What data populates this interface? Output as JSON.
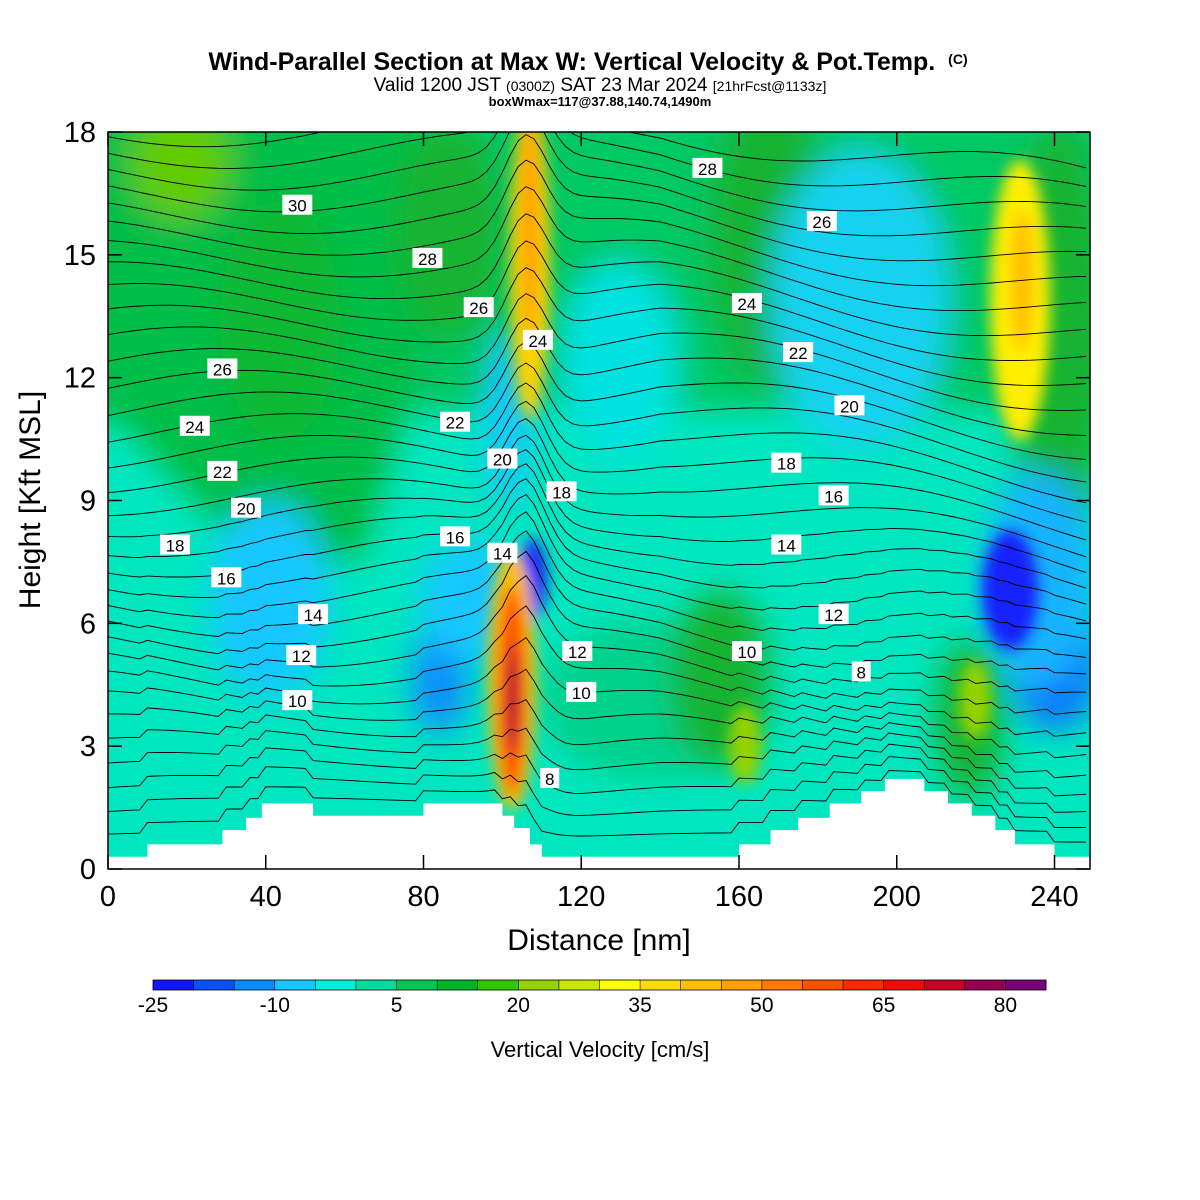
{
  "chart_data": {
    "type": "heatmap",
    "title": "Wind-Parallel Section at Max W: Vertical Velocity & Pot.Temp.",
    "title_mark": "(C)",
    "subtitle_parts": [
      "Valid 1200 JST",
      "(0300Z)",
      "SAT 23 Mar 2024",
      "[21hrFcst@1133z]"
    ],
    "info": "boxWmax=117@37.88,140.74,1490m",
    "xlabel": "Distance [nm]",
    "ylabel": "Height [Kft MSL]",
    "xlim": [
      0,
      249
    ],
    "ylim": [
      0,
      18
    ],
    "x_ticks": [
      0,
      40,
      80,
      120,
      160,
      200,
      240
    ],
    "y_ticks": [
      0,
      3,
      6,
      9,
      12,
      15,
      18
    ],
    "colorbar": {
      "label": "Vertical Velocity [cm/s]",
      "tick_labels": [
        "-25",
        "-10",
        "5",
        "20",
        "35",
        "50",
        "65",
        "80"
      ],
      "colors": [
        "#1414ff",
        "#0a50ff",
        "#0a8cff",
        "#14c8ff",
        "#00eedc",
        "#00dca0",
        "#00c850",
        "#00b428",
        "#32c800",
        "#96d200",
        "#c8e600",
        "#ffff00",
        "#ffdc00",
        "#ffbe00",
        "#ffa000",
        "#ff7800",
        "#ff5000",
        "#ff2800",
        "#f00a0a",
        "#c80028",
        "#960050",
        "#780078"
      ]
    },
    "velocity_cells": [
      {
        "x": 110,
        "z": 4.0,
        "w": 75
      },
      {
        "x": 114,
        "z": 14.0,
        "w": 35
      },
      {
        "x": 230,
        "z": 16.0,
        "w": 33
      },
      {
        "x": 232,
        "z": 13.0,
        "w": 20
      },
      {
        "x": 115,
        "z": 7.0,
        "w": -20
      },
      {
        "x": 229,
        "z": 6.5,
        "w": -22
      },
      {
        "x": 163,
        "z": 3.0,
        "w": 25
      },
      {
        "x": 220,
        "z": 3.8,
        "w": 20
      }
    ],
    "isentrope_labels": [
      {
        "text": "30",
        "x": 48,
        "z": 16.2
      },
      {
        "text": "28",
        "x": 81,
        "z": 14.9
      },
      {
        "text": "26",
        "x": 94,
        "z": 13.7
      },
      {
        "text": "24",
        "x": 109,
        "z": 12.9
      },
      {
        "text": "26",
        "x": 29,
        "z": 12.2
      },
      {
        "text": "24",
        "x": 22,
        "z": 10.8
      },
      {
        "text": "22",
        "x": 29,
        "z": 9.7
      },
      {
        "text": "20",
        "x": 35,
        "z": 8.8
      },
      {
        "text": "18",
        "x": 17,
        "z": 7.9
      },
      {
        "text": "16",
        "x": 30,
        "z": 7.1
      },
      {
        "text": "22",
        "x": 88,
        "z": 10.9
      },
      {
        "text": "20",
        "x": 100,
        "z": 10.0
      },
      {
        "text": "18",
        "x": 115,
        "z": 9.2
      },
      {
        "text": "16",
        "x": 88,
        "z": 8.1
      },
      {
        "text": "14",
        "x": 100,
        "z": 7.7
      },
      {
        "text": "14",
        "x": 52,
        "z": 6.2
      },
      {
        "text": "12",
        "x": 49,
        "z": 5.2
      },
      {
        "text": "10",
        "x": 48,
        "z": 4.1
      },
      {
        "text": "12",
        "x": 119,
        "z": 5.3
      },
      {
        "text": "10",
        "x": 120,
        "z": 4.3
      },
      {
        "text": "8",
        "x": 112,
        "z": 2.2
      },
      {
        "text": "28",
        "x": 152,
        "z": 17.1
      },
      {
        "text": "26",
        "x": 181,
        "z": 15.8
      },
      {
        "text": "24",
        "x": 162,
        "z": 13.8
      },
      {
        "text": "22",
        "x": 175,
        "z": 12.6
      },
      {
        "text": "20",
        "x": 188,
        "z": 11.3
      },
      {
        "text": "18",
        "x": 172,
        "z": 9.9
      },
      {
        "text": "16",
        "x": 184,
        "z": 9.1
      },
      {
        "text": "14",
        "x": 172,
        "z": 7.9
      },
      {
        "text": "12",
        "x": 184,
        "z": 6.2
      },
      {
        "text": "10",
        "x": 162,
        "z": 5.3
      },
      {
        "text": "8",
        "x": 191,
        "z": 4.8
      }
    ],
    "terrain": [
      [
        0,
        0.3
      ],
      [
        10,
        0.3
      ],
      [
        10,
        0.6
      ],
      [
        29,
        0.6
      ],
      [
        29,
        0.95
      ],
      [
        35,
        0.95
      ],
      [
        35,
        1.25
      ],
      [
        39,
        1.25
      ],
      [
        39,
        1.6
      ],
      [
        52,
        1.6
      ],
      [
        52,
        1.3
      ],
      [
        80,
        1.3
      ],
      [
        80,
        1.6
      ],
      [
        100,
        1.6
      ],
      [
        100,
        1.3
      ],
      [
        103,
        1.3
      ],
      [
        103,
        1.0
      ],
      [
        107,
        1.0
      ],
      [
        107,
        0.6
      ],
      [
        110,
        0.6
      ],
      [
        110,
        0.3
      ],
      [
        160,
        0.3
      ],
      [
        160,
        0.6
      ],
      [
        168,
        0.6
      ],
      [
        168,
        0.95
      ],
      [
        175,
        0.95
      ],
      [
        175,
        1.25
      ],
      [
        183,
        1.25
      ],
      [
        183,
        1.6
      ],
      [
        191,
        1.6
      ],
      [
        191,
        1.9
      ],
      [
        197,
        1.9
      ],
      [
        197,
        2.2
      ],
      [
        207,
        2.2
      ],
      [
        207,
        1.9
      ],
      [
        213,
        1.9
      ],
      [
        213,
        1.6
      ],
      [
        219,
        1.6
      ],
      [
        219,
        1.3
      ],
      [
        225,
        1.3
      ],
      [
        225,
        0.95
      ],
      [
        230,
        0.95
      ],
      [
        230,
        0.6
      ],
      [
        240,
        0.6
      ],
      [
        240,
        0.3
      ],
      [
        249,
        0.3
      ]
    ]
  }
}
